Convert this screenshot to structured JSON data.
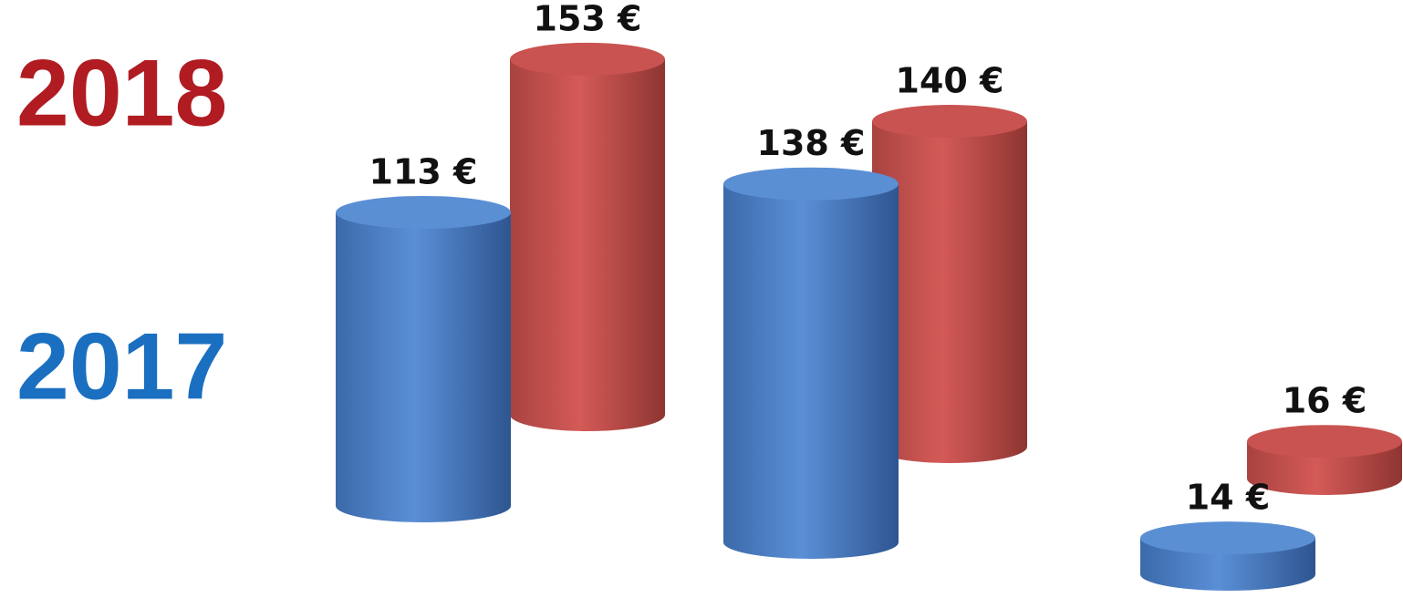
{
  "chart_data": {
    "type": "bar",
    "categories": [
      null,
      null,
      null
    ],
    "series": [
      {
        "name": "2017",
        "color": "#4f81bd",
        "values": [
          113,
          138,
          14
        ],
        "value_labels": [
          "113 €",
          "138 €",
          "14 €"
        ]
      },
      {
        "name": "2018",
        "color": "#c0504d",
        "values": [
          153,
          140,
          16
        ],
        "value_labels": [
          "153 €",
          "140 €",
          "16 €"
        ]
      }
    ]
  }
}
